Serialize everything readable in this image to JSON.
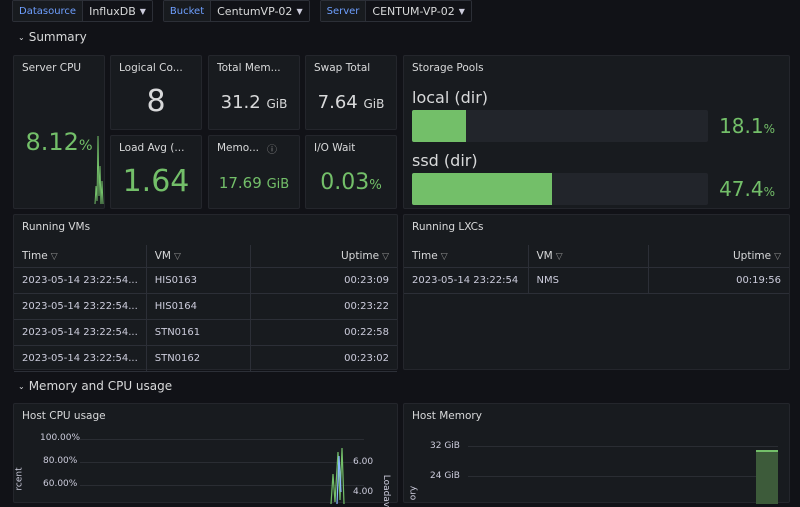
{
  "variables": [
    {
      "label": "Datasource",
      "value": "InfluxDB"
    },
    {
      "label": "Bucket",
      "value": "CentumVP-02"
    },
    {
      "label": "Server",
      "value": "CENTUM-VP-02"
    }
  ],
  "rows": {
    "summary": "Summary",
    "memory_cpu": "Memory and CPU usage"
  },
  "stats": {
    "server_cpu": {
      "title": "Server CPU",
      "value": "8.12",
      "unit": "%"
    },
    "logical_cores": {
      "title": "Logical Co...",
      "value": "8"
    },
    "total_memory": {
      "title": "Total Mem...",
      "value": "31.2",
      "unit": "GiB"
    },
    "swap_total": {
      "title": "Swap Total",
      "value": "7.64",
      "unit": "GiB"
    },
    "load_avg": {
      "title": "Load Avg (...",
      "value": "1.64"
    },
    "memory": {
      "title": "Memo...",
      "value": "17.69",
      "unit": "GiB"
    },
    "io_wait": {
      "title": "I/O Wait",
      "value": "0.03",
      "unit": "%"
    }
  },
  "storage_pools": {
    "title": "Storage Pools",
    "pools": [
      {
        "name": "local (dir)",
        "value": "18.1",
        "unit": "%",
        "fraction": 0.181
      },
      {
        "name": "ssd (dir)",
        "value": "47.4",
        "unit": "%",
        "fraction": 0.474
      }
    ]
  },
  "running_vms": {
    "title": "Running VMs",
    "headers": [
      "Time",
      "VM",
      "Uptime"
    ],
    "rows": [
      [
        "2023-05-14 23:22:54...",
        "HIS0163",
        "00:23:09"
      ],
      [
        "2023-05-14 23:22:54...",
        "HIS0164",
        "00:23:22"
      ],
      [
        "2023-05-14 23:22:54...",
        "STN0161",
        "00:22:58"
      ],
      [
        "2023-05-14 23:22:54...",
        "STN0162",
        "00:23:02"
      ]
    ]
  },
  "running_lxcs": {
    "title": "Running LXCs",
    "headers": [
      "Time",
      "VM",
      "Uptime"
    ],
    "rows": [
      [
        "2023-05-14 23:22:54",
        "NMS",
        "00:19:56"
      ]
    ]
  },
  "host_cpu": {
    "title": "Host CPU usage",
    "left_ticks": [
      "100.00%",
      "80.00%",
      "60.00%"
    ],
    "right_ticks": [
      "6.00",
      "4.00"
    ],
    "left_axis": "rcent",
    "right_axis": "Loadav"
  },
  "host_memory": {
    "title": "Host Memory",
    "ticks": [
      "32 GiB",
      "24 GiB"
    ],
    "axis": "ory"
  },
  "colors": {
    "accent": "#73bf69",
    "link": "#6e9fff",
    "panel": "#181b1f",
    "bg": "#111217"
  },
  "icons": {
    "filter": "filter-icon",
    "info": "info-icon",
    "caret": "caret-down-icon",
    "chevron": "chevron-down-icon"
  }
}
